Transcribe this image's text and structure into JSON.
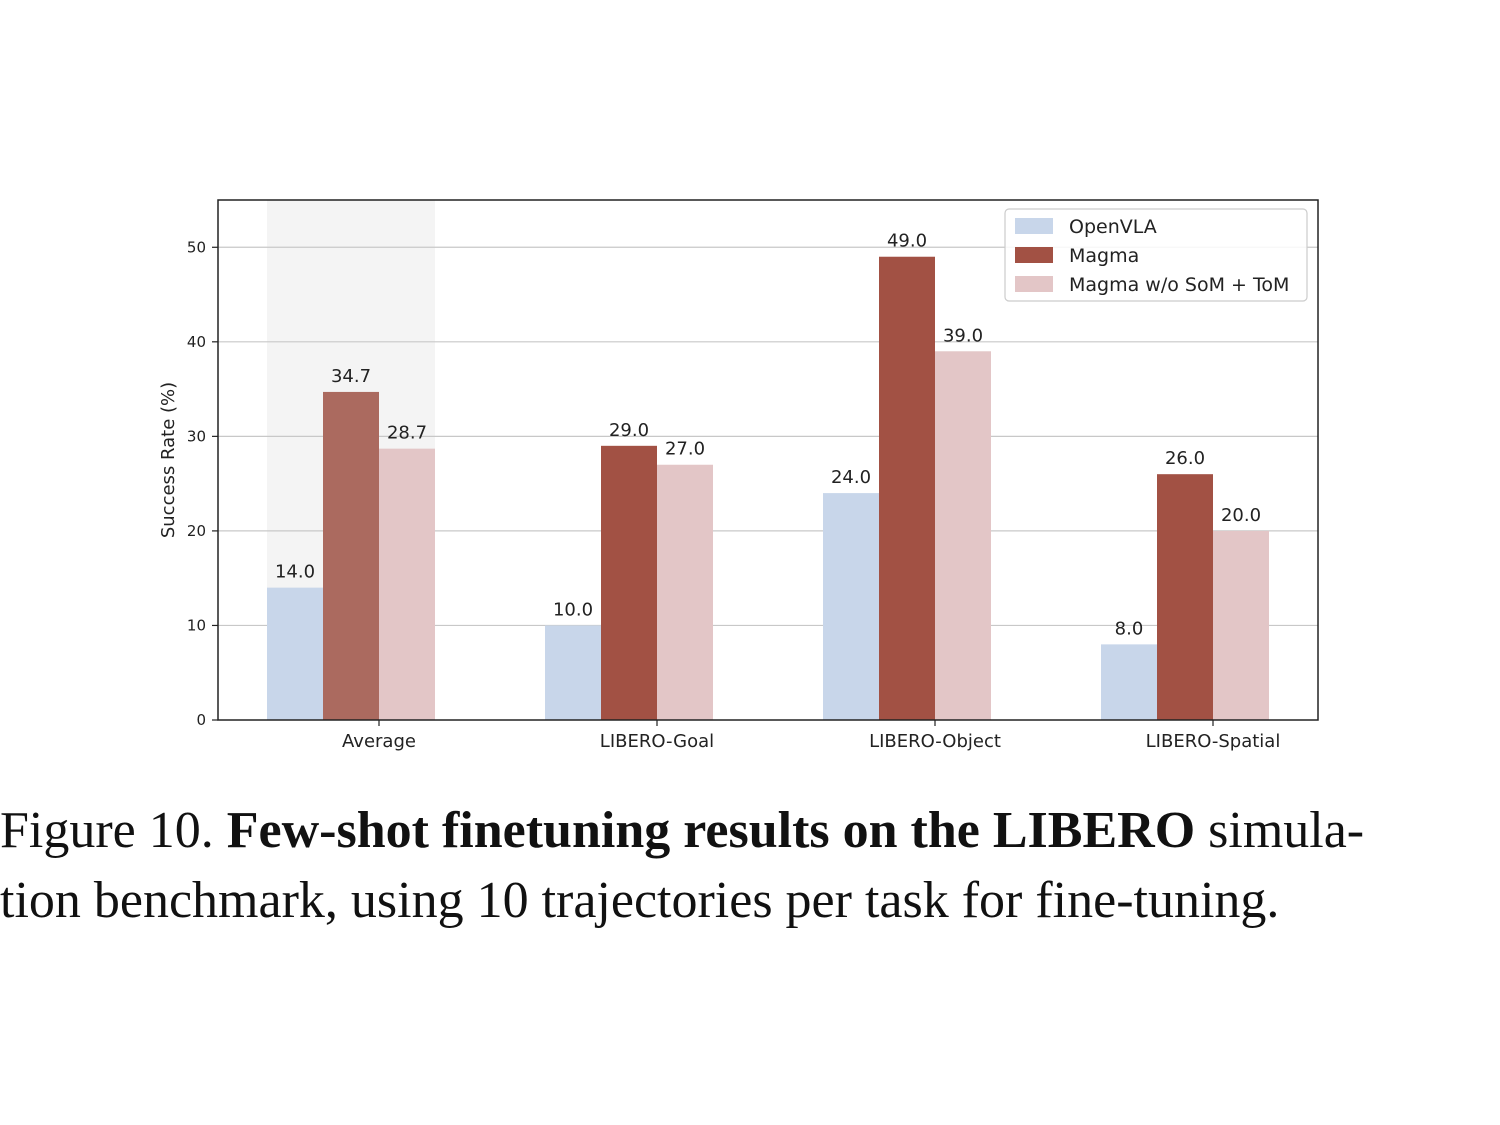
{
  "chart_data": {
    "type": "bar",
    "categories": [
      "Average",
      "LIBERO-Goal",
      "LIBERO-Object",
      "LIBERO-Spatial"
    ],
    "series": [
      {
        "name": "OpenVLA",
        "values": [
          14.0,
          10.0,
          24.0,
          8.0
        ],
        "color": "#c8d6ea"
      },
      {
        "name": "Magma",
        "values": [
          34.7,
          29.0,
          49.0,
          26.0
        ],
        "color": "#a25144"
      },
      {
        "name": "Magma w/o SoM + ToM",
        "values": [
          28.7,
          27.0,
          39.0,
          20.0
        ],
        "color": "#e3c6c7"
      }
    ],
    "highlight_category": "Average",
    "highlight_colors": {
      "background": "#f4f4f4",
      "Magma": "#ab6a5f"
    },
    "ylabel": "Success Rate (%)",
    "ylim": [
      0,
      55
    ],
    "yticks": [
      0,
      10,
      20,
      30,
      40,
      50
    ],
    "grid": true,
    "legend_position": "top-right"
  },
  "caption": {
    "figure_label": "Figure 10.",
    "bold_text": "Few-shot finetuning results on the LIBERO",
    "line1_rest": "simula-",
    "line2": "tion benchmark, using 10 trajectories per task for fine-tuning."
  }
}
